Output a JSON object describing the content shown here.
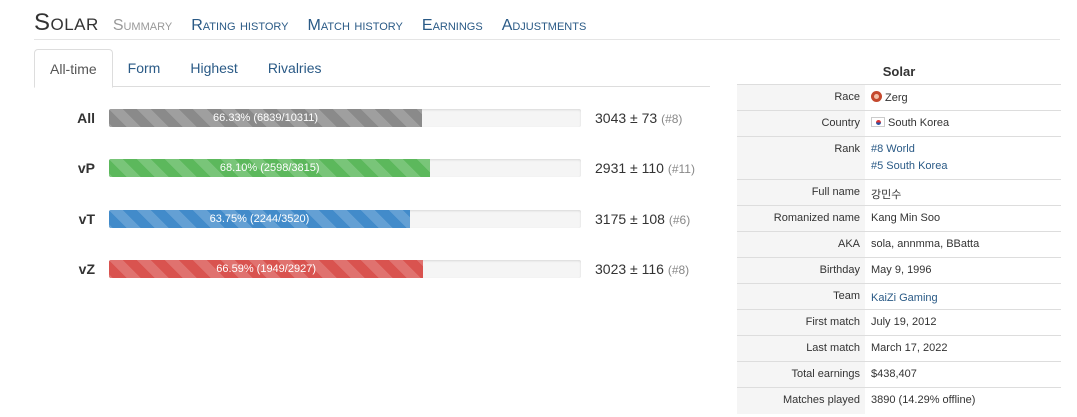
{
  "header": {
    "player_name": "Solar",
    "nav": [
      "Summary",
      "Rating history",
      "Match history",
      "Earnings",
      "Adjustments"
    ]
  },
  "tabs": [
    "All-time",
    "Form",
    "Highest",
    "Rivalries"
  ],
  "bars": [
    {
      "label": "All",
      "text": "66.33% (6839/10311)",
      "fraction": 0.6633,
      "color": "#8a8a8a",
      "rating": "3043 ± 73",
      "rank": "(#8)"
    },
    {
      "label": "vP",
      "text": "68.10% (2598/3815)",
      "fraction": 0.681,
      "color": "#5cb85c",
      "rating": "2931 ± 110",
      "rank": "(#11)"
    },
    {
      "label": "vT",
      "text": "63.75% (2244/3520)",
      "fraction": 0.6375,
      "color": "#428bca",
      "rating": "3175 ± 108",
      "rank": "(#6)"
    },
    {
      "label": "vZ",
      "text": "66.59% (1949/2927)",
      "fraction": 0.6659,
      "color": "#d9534f",
      "rating": "3023 ± 116",
      "rank": "(#8)"
    }
  ],
  "infobox": {
    "title": "Solar",
    "race": {
      "key": "Race",
      "value": "Zerg",
      "icon": "zerg-icon"
    },
    "country": {
      "key": "Country",
      "value": "South Korea",
      "icon": "south-korea-flag-icon"
    },
    "rank": {
      "key": "Rank",
      "world": "#8 World",
      "national": "#5 South Korea"
    },
    "full_name": {
      "key": "Full name",
      "value": "강민수"
    },
    "romanized": {
      "key": "Romanized name",
      "value": "Kang Min Soo"
    },
    "aka": {
      "key": "AKA",
      "value": "sola, annmma, BBatta"
    },
    "birthday": {
      "key": "Birthday",
      "value": "May 9, 1996"
    },
    "team": {
      "key": "Team",
      "value": "KaiZi Gaming"
    },
    "first_match": {
      "key": "First match",
      "value": "July 19, 2012"
    },
    "last_match": {
      "key": "Last match",
      "value": "March 17, 2022"
    },
    "earnings": {
      "key": "Total earnings",
      "value": "$438,407"
    },
    "matches": {
      "key": "Matches played",
      "value": "3890 (14.29% offline)"
    }
  }
}
